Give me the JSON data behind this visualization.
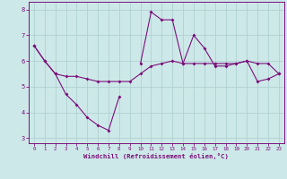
{
  "xlabel": "Windchill (Refroidissement éolien,°C)",
  "x_values": [
    0,
    1,
    2,
    3,
    4,
    5,
    6,
    7,
    8,
    9,
    10,
    11,
    12,
    13,
    14,
    15,
    16,
    17,
    18,
    19,
    20,
    21,
    22,
    23
  ],
  "line1": [
    6.6,
    6.0,
    5.5,
    4.7,
    4.3,
    3.8,
    3.5,
    3.3,
    4.6,
    null,
    null,
    null,
    null,
    null,
    null,
    null,
    null,
    null,
    null,
    null,
    null,
    null,
    null,
    null
  ],
  "line2": [
    null,
    null,
    null,
    null,
    null,
    null,
    null,
    null,
    null,
    null,
    5.9,
    7.9,
    7.6,
    7.6,
    5.9,
    7.0,
    6.5,
    5.8,
    5.8,
    5.9,
    6.0,
    5.2,
    5.3,
    5.5
  ],
  "line3": [
    6.6,
    6.0,
    5.5,
    5.4,
    5.4,
    5.3,
    5.2,
    5.2,
    5.2,
    5.2,
    5.5,
    5.8,
    5.9,
    6.0,
    5.9,
    5.9,
    5.9,
    5.9,
    5.9,
    5.9,
    6.0,
    5.9,
    5.9,
    5.5
  ],
  "ylim": [
    2.8,
    8.3
  ],
  "yticks": [
    3,
    4,
    5,
    6,
    7,
    8
  ],
  "xlim": [
    -0.5,
    23.5
  ],
  "line_color": "#7b0f7b",
  "bg_color": "#cde8e8",
  "grid_color": "#aacece",
  "axis_bg": "#cde8e8"
}
